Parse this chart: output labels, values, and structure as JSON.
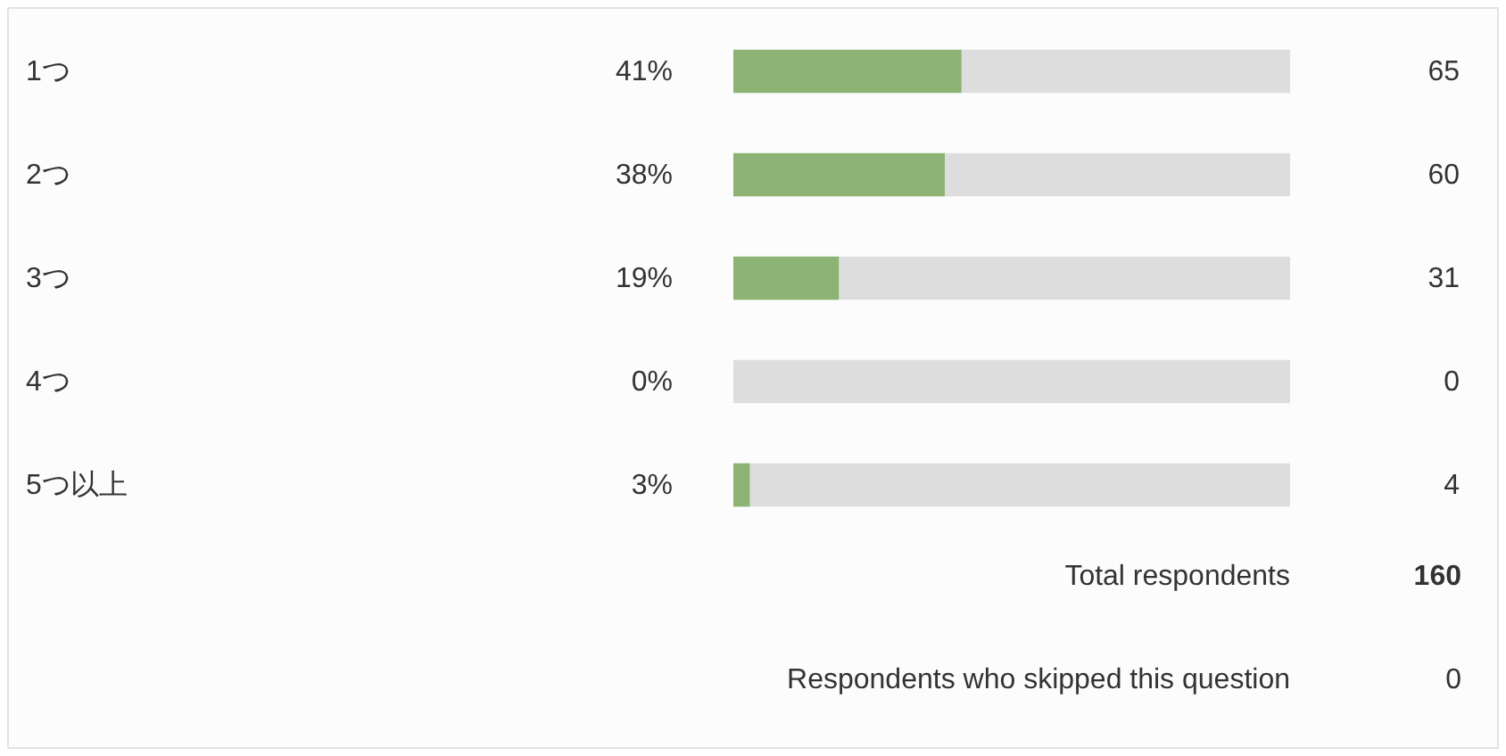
{
  "chart_data": {
    "type": "bar",
    "orientation": "horizontal",
    "stacked": true,
    "categories": [
      "1つ",
      "2つ",
      "3つ",
      "4つ",
      "5つ以上"
    ],
    "series": [
      {
        "color": "#8cb373",
        "values": [
          41,
          38,
          19,
          0,
          3
        ],
        "value_labels": [
          "41%",
          "38%",
          "19%",
          "0%",
          "3%"
        ]
      },
      {
        "color": "#dddddd",
        "values": [
          59,
          62,
          81,
          100,
          97
        ]
      }
    ],
    "xlim": [
      0,
      100
    ],
    "tick_labels": "y",
    "annotations": [
      "65",
      "60",
      "31",
      "0",
      "4",
      "Total respondents",
      "160",
      "Respondents who skipped this question",
      "0"
    ]
  }
}
